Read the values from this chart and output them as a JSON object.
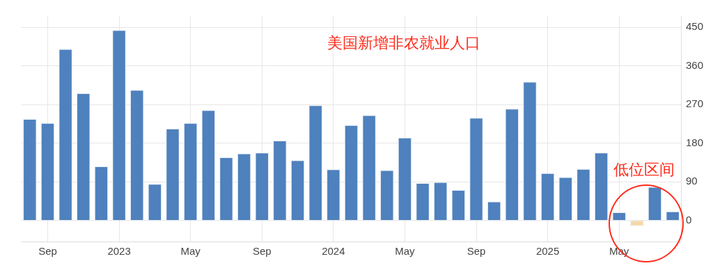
{
  "chart_data": {
    "type": "bar",
    "title": "美国新增非农就业人口",
    "categories": [
      null,
      "Sep",
      null,
      null,
      null,
      "2023",
      null,
      null,
      null,
      "May",
      null,
      null,
      null,
      "Sep",
      null,
      null,
      null,
      "2024",
      null,
      null,
      null,
      "May",
      null,
      null,
      null,
      "Sep",
      null,
      null,
      null,
      "2025",
      null,
      null,
      null,
      "May",
      null,
      null,
      null
    ],
    "values": [
      236,
      227,
      399,
      296,
      126,
      443,
      304,
      85,
      214,
      227,
      257,
      147,
      156,
      158,
      186,
      140,
      268,
      119,
      222,
      245,
      117,
      193,
      87,
      89,
      71,
      239,
      44,
      260,
      323,
      110,
      101,
      120,
      158,
      19,
      -13,
      78,
      21
    ],
    "colors": [
      "#4e81bd",
      "#4e81bd",
      "#4e81bd",
      "#4e81bd",
      "#4e81bd",
      "#4e81bd",
      "#4e81bd",
      "#4e81bd",
      "#4e81bd",
      "#4e81bd",
      "#4e81bd",
      "#4e81bd",
      "#4e81bd",
      "#4e81bd",
      "#4e81bd",
      "#4e81bd",
      "#4e81bd",
      "#4e81bd",
      "#4e81bd",
      "#4e81bd",
      "#4e81bd",
      "#4e81bd",
      "#4e81bd",
      "#4e81bd",
      "#4e81bd",
      "#4e81bd",
      "#4e81bd",
      "#4e81bd",
      "#4e81bd",
      "#4e81bd",
      "#4e81bd",
      "#4e81bd",
      "#4e81bd",
      "#4e81bd",
      "#f3d9a8",
      "#4e81bd",
      "#4e81bd"
    ],
    "ylim": [
      -49,
      476
    ],
    "yticks": [
      0,
      90,
      180,
      270,
      360,
      450
    ],
    "grid": true,
    "annotations": [
      "低位区间"
    ]
  }
}
